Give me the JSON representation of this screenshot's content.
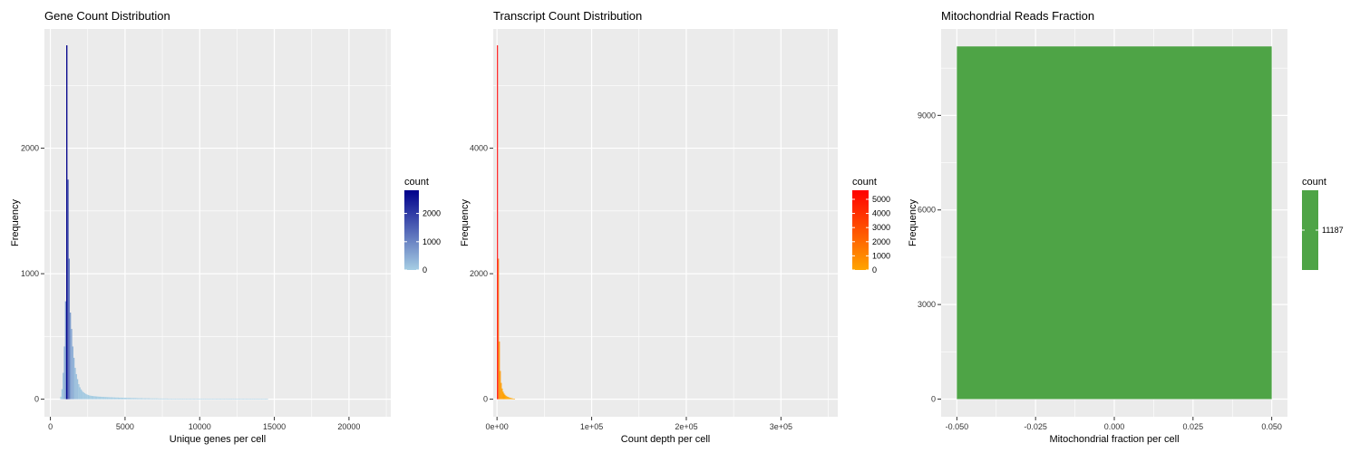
{
  "chart_data": [
    {
      "id": "genes",
      "type": "bar",
      "title": "Gene Count Distribution",
      "xlabel": "Unique genes per cell",
      "ylabel": "Frequency",
      "xlim": [
        -400,
        22800
      ],
      "ylim": [
        -140,
        2950
      ],
      "xticks": [
        0,
        5000,
        10000,
        15000,
        20000
      ],
      "xtick_labels": [
        "0",
        "5000",
        "10000",
        "15000",
        "20000"
      ],
      "yticks": [
        0,
        1000,
        2000
      ],
      "ytick_labels": [
        "0",
        "1000",
        "2000"
      ],
      "bins": {
        "x": [
          700,
          780,
          860,
          940,
          1020,
          1100,
          1180,
          1260,
          1340,
          1420,
          1500,
          1580,
          1660,
          1740,
          1820,
          1900,
          1980,
          2060,
          2140,
          2220,
          2300,
          2380,
          2460,
          2540,
          2620,
          2700,
          2780,
          2860,
          2940,
          3020,
          3100,
          3180,
          3260,
          3340,
          3420,
          3500,
          3580,
          3660,
          3740,
          3820,
          3900,
          3980,
          4060,
          4140,
          4220,
          4300,
          4380,
          4460,
          4540,
          4620,
          4700,
          4780,
          4860,
          4940,
          5020,
          5100,
          5180,
          5260,
          5340,
          5420,
          5500,
          5580,
          5660,
          5740,
          5820,
          5900,
          5980,
          6060,
          6140,
          6220,
          6300,
          6380,
          6460,
          6540,
          6620,
          6700,
          6780,
          6860,
          6940,
          7020,
          7100,
          7180,
          7260,
          7340,
          7420,
          7500,
          7580,
          7660,
          7740,
          7820,
          7900,
          7980,
          8060,
          8140,
          8220,
          8300,
          8380,
          8460,
          8540,
          8620,
          8700,
          8780,
          8860,
          8940,
          9020,
          9100,
          9180,
          9260,
          9340,
          9420,
          9500,
          9580,
          9660,
          9740,
          9820,
          9900,
          9980,
          10060,
          10140,
          10220,
          10300,
          10380,
          10460,
          10540,
          10620,
          10700,
          10780,
          10860,
          10940,
          11020,
          11100,
          11180,
          11260,
          11340,
          11420,
          11500,
          11580,
          11660,
          11740,
          11820,
          11900,
          11980,
          12060,
          12140,
          12220,
          12300,
          12380,
          12460,
          12540,
          12620,
          12700,
          12780,
          12860,
          12940,
          13020,
          13100,
          13180,
          13260,
          13340,
          13420,
          13500,
          13580,
          13660,
          13740,
          13820,
          13900,
          13980,
          14060,
          14140,
          14220,
          14300,
          14380,
          14460,
          14540
        ],
        "count": [
          20,
          80,
          210,
          420,
          780,
          2820,
          1750,
          1120,
          690,
          560,
          420,
          330,
          250,
          200,
          160,
          120,
          95,
          78,
          65,
          55,
          48,
          42,
          37,
          33,
          30,
          28,
          26,
          25,
          24,
          23,
          22,
          21,
          20,
          20,
          19,
          18,
          18,
          17,
          17,
          16,
          16,
          15,
          15,
          15,
          14,
          14,
          13,
          13,
          13,
          12,
          12,
          12,
          11,
          11,
          11,
          10,
          10,
          10,
          10,
          9,
          9,
          9,
          9,
          9,
          8,
          8,
          8,
          8,
          8,
          7,
          7,
          7,
          7,
          7,
          7,
          6,
          6,
          6,
          6,
          6,
          6,
          6,
          5,
          5,
          5,
          5,
          5,
          5,
          5,
          5,
          4,
          4,
          4,
          4,
          4,
          4,
          4,
          4,
          4,
          4,
          3,
          3,
          3,
          3,
          3,
          3,
          3,
          3,
          3,
          3,
          3,
          3,
          2,
          2,
          2,
          2,
          2,
          2,
          2,
          2,
          2,
          2,
          2,
          2,
          2,
          2,
          2,
          2,
          2,
          2,
          1,
          1,
          1,
          1,
          1,
          1,
          1,
          1,
          1,
          1,
          1,
          1,
          1,
          1,
          1,
          1,
          1,
          1,
          1,
          1,
          1,
          1,
          1,
          1,
          1,
          1,
          1,
          1,
          1,
          1,
          1,
          1,
          1,
          1,
          1,
          1,
          1,
          1,
          1,
          1,
          1,
          1,
          1,
          1,
          1,
          1,
          1
        ]
      },
      "legend": {
        "title": "count",
        "ticks": [
          0,
          1000,
          2000
        ],
        "tick_labels": [
          "0",
          "1000",
          "2000"
        ],
        "range": [
          0,
          2820
        ],
        "colors": [
          "#a6cee3",
          "#00008b"
        ],
        "placement": "right"
      },
      "grid": true
    },
    {
      "id": "transcripts",
      "type": "bar",
      "title": "Transcript Count Distribution",
      "xlabel": "Count depth per cell",
      "ylabel": "Frequency",
      "xlim": [
        -4000,
        360000
      ],
      "ylim": [
        -280,
        5900
      ],
      "xticks": [
        0,
        100000,
        200000,
        300000
      ],
      "xtick_labels": [
        "0e+00",
        "1e+05",
        "2e+05",
        "3e+05"
      ],
      "yticks": [
        0,
        2000,
        4000
      ],
      "ytick_labels": [
        "0",
        "2000",
        "4000"
      ],
      "bins": {
        "x": [
          500,
          1500,
          2500,
          3500,
          4500,
          5500,
          6500,
          7500,
          8500,
          9500,
          10500,
          11500,
          12500,
          13500,
          14500,
          15500,
          16500,
          17500,
          18500
        ],
        "count": [
          5640,
          2240,
          920,
          450,
          260,
          170,
          120,
          90,
          70,
          55,
          45,
          38,
          30,
          25,
          20,
          16,
          12,
          9,
          6
        ]
      },
      "legend": {
        "title": "count",
        "ticks": [
          0,
          1000,
          2000,
          3000,
          4000,
          5000
        ],
        "tick_labels": [
          "0",
          "1000",
          "2000",
          "3000",
          "4000",
          "5000"
        ],
        "range": [
          0,
          5640
        ],
        "colors": [
          "#ffa500",
          "#ff0000"
        ],
        "placement": "right"
      },
      "grid": true
    },
    {
      "id": "mito",
      "type": "bar",
      "title": "Mitochondrial Reads Fraction",
      "xlabel": "Mitochondrial fraction per cell",
      "ylabel": "Frequency",
      "xlim": [
        -0.055,
        0.055
      ],
      "ylim": [
        -560,
        11740
      ],
      "xticks": [
        -0.05,
        -0.025,
        0,
        0.025,
        0.05
      ],
      "xtick_labels": [
        "-0.050",
        "-0.025",
        "0.000",
        "0.025",
        "0.050"
      ],
      "yticks": [
        0,
        3000,
        6000,
        9000
      ],
      "ytick_labels": [
        "0",
        "3000",
        "6000",
        "9000"
      ],
      "bins": {
        "x": [
          0
        ],
        "count": [
          11187
        ],
        "xmin": -0.05,
        "xmax": 0.05
      },
      "legend": {
        "title": "count",
        "ticks": [
          11187
        ],
        "tick_labels": [
          "11187"
        ],
        "colors": [
          "#4ea446"
        ],
        "placement": "right"
      },
      "grid": true
    }
  ]
}
